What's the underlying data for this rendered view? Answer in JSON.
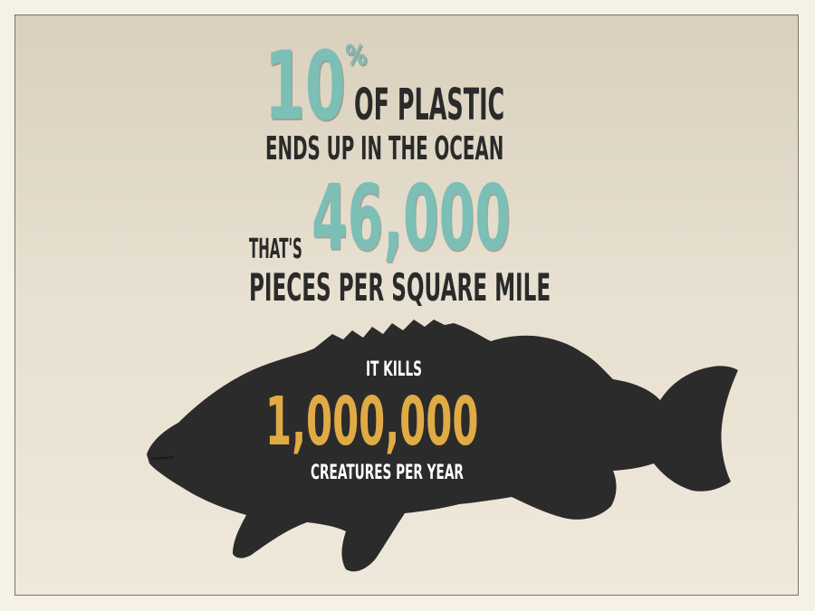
{
  "stat1": {
    "number": "10",
    "percent": "%",
    "line1": "OF PLASTIC",
    "line2": "ENDS UP IN THE OCEAN"
  },
  "stat2": {
    "prefix": "THAT'S",
    "number": "46,000",
    "line": "PIECES PER SQUARE MILE"
  },
  "stat3": {
    "prefix": "IT KILLS",
    "number": "1,000,000",
    "line": "CREATURES PER YEAR"
  },
  "colors": {
    "teal": "#7bbfb6",
    "dark": "#2a2a2a",
    "gold": "#e0ab45",
    "background": "#e7dfcf"
  },
  "icons": {
    "fish": "fish-silhouette-icon"
  }
}
